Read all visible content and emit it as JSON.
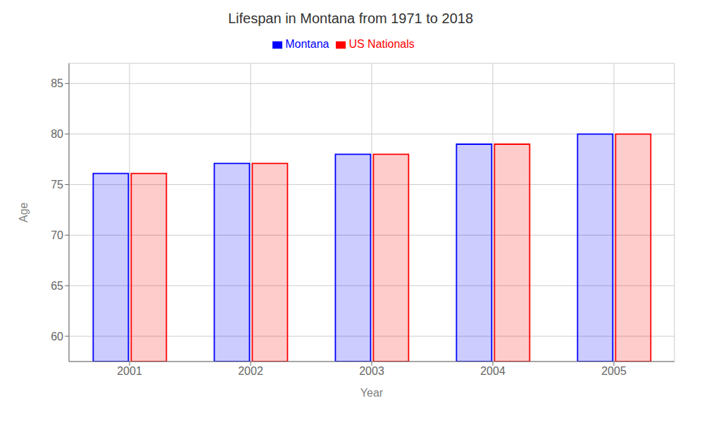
{
  "chart_data": {
    "type": "bar",
    "title": "Lifespan in Montana from 1971 to 2018",
    "x_label": "Year",
    "y_label": "Age",
    "categories": [
      "2001",
      "2002",
      "2003",
      "2004",
      "2005"
    ],
    "series": [
      {
        "name": "Montana",
        "color": "#0000ff",
        "values": [
          76.1,
          77.1,
          78.0,
          79.0,
          80.0
        ]
      },
      {
        "name": "US Nationals",
        "color": "#ff0000",
        "values": [
          76.1,
          77.1,
          78.0,
          79.0,
          80.0
        ]
      }
    ],
    "ylim": [
      57.5,
      87
    ],
    "yticks": [
      60,
      65,
      70,
      75,
      80,
      85
    ],
    "grid": true,
    "legend": "top"
  }
}
